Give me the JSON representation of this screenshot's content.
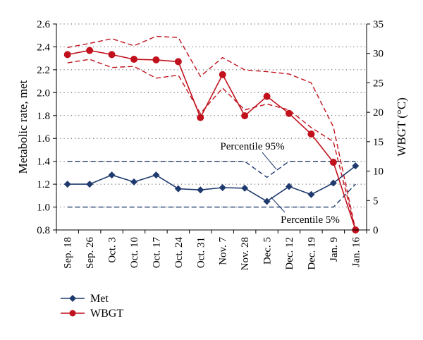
{
  "chart_data": {
    "type": "line",
    "categories": [
      "Sep. 18",
      "Sep. 26",
      "Oct. 3",
      "Oct. 10",
      "Oct. 17",
      "Oct. 24",
      "Oct. 31",
      "Nov. 7",
      "Nov. 28",
      "Dec. 5",
      "Dec. 12",
      "Dec. 19",
      "Jan. 9",
      "Jan. 16"
    ],
    "ylabel": "Metabolic rate, met",
    "y2label": "WBGT (°C)",
    "ylim": [
      0.8,
      2.6
    ],
    "yticks": [
      "0.8",
      "1.0",
      "1.2",
      "1.4",
      "1.6",
      "1.8",
      "2.0",
      "2.2",
      "2.4",
      "2.6"
    ],
    "y2lim": [
      0,
      35
    ],
    "y2ticks": [
      "0",
      "5",
      "10",
      "15",
      "20",
      "25",
      "30",
      "35"
    ],
    "grid": "horizontal dotted",
    "legend_position": "bottom-left",
    "series": [
      {
        "name": "Met",
        "axis": "left",
        "color": "#1f3a6e",
        "marker": "diamond",
        "values": [
          1.2,
          1.2,
          1.28,
          1.22,
          1.28,
          1.16,
          1.15,
          1.17,
          1.165,
          1.05,
          1.18,
          1.11,
          1.21,
          1.36
        ]
      },
      {
        "name": "WBGT",
        "axis": "right",
        "color": "#c0111c",
        "marker": "circle",
        "values": [
          29.8,
          30.5,
          29.8,
          29.0,
          28.9,
          28.6,
          19.1,
          26.4,
          19.4,
          22.7,
          19.8,
          16.3,
          11.5,
          0
        ]
      }
    ],
    "percentile_bands": {
      "met_upper": [
        1.4,
        1.4,
        1.4,
        1.4,
        1.4,
        1.4,
        1.4,
        1.4,
        1.4,
        1.26,
        1.4,
        1.4,
        1.4,
        1.4
      ],
      "met_lower": [
        1.0,
        1.0,
        1.0,
        1.0,
        1.0,
        1.0,
        1.0,
        1.0,
        1.0,
        1.0,
        1.0,
        1.0,
        1.0,
        1.2
      ],
      "wbgt_upper": [
        31.0,
        31.7,
        32.5,
        31.3,
        32.9,
        32.7,
        26.1,
        29.3,
        27.2,
        26.9,
        26.5,
        25.0,
        17.5,
        0
      ],
      "wbgt_lower": [
        28.4,
        29.0,
        27.6,
        27.8,
        25.8,
        26.3,
        19.8,
        24.1,
        20.4,
        21.4,
        20.4,
        17.4,
        15.0,
        0
      ]
    },
    "annotations": [
      {
        "text": "Percentile 95%"
      },
      {
        "text": "Percentile 5%"
      }
    ]
  }
}
